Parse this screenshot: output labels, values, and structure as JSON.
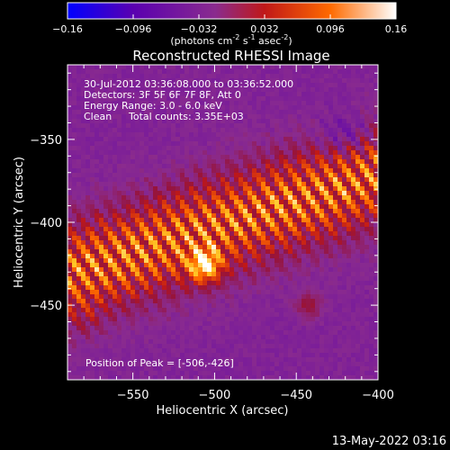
{
  "chart_data": {
    "type": "heatmap",
    "title": "Reconstructed RHESSI Image",
    "xlabel": "Heliocentric X (arcsec)",
    "ylabel": "Heliocentric Y (arcsec)",
    "xlim": [
      -590,
      -400
    ],
    "ylim": [
      -495,
      -305
    ],
    "xticks": [
      -550,
      -500,
      -450,
      -400
    ],
    "yticks": [
      -350,
      -400,
      -450
    ],
    "colorbar": {
      "range": [
        -0.16,
        0.16
      ],
      "ticks": [
        "-0.16",
        "-0.096",
        "-0.032",
        "0.032",
        "0.096",
        "0.16"
      ],
      "label_main": "(photons cm",
      "label_sup1": "-2",
      "label_mid1": " s",
      "label_sup2": "-1",
      "label_mid2": " asec",
      "label_sup3": "-2",
      "label_end": ")",
      "colors": [
        "#0000ff",
        "#5a00b0",
        "#8a2b8e",
        "#c01818",
        "#ff6a00",
        "#ffffff"
      ]
    },
    "annotations": {
      "time_range": "30-Jul-2012 03:36:08.000 to 03:36:52.000",
      "detectors": "Detectors: 3F 5F 6F 7F 8F, Att 0",
      "energy": "Energy Range: 3.0 - 6.0 keV",
      "method": "Clean",
      "counts": "Total counts: 3.35E+03",
      "peak": "Position of Peak = [-506,-426]"
    },
    "peak": {
      "x": -506,
      "y": -426
    },
    "colormap": "blue-purple-red-yellow-white"
  },
  "footer": {
    "timestamp": "13-May-2022 03:16"
  }
}
